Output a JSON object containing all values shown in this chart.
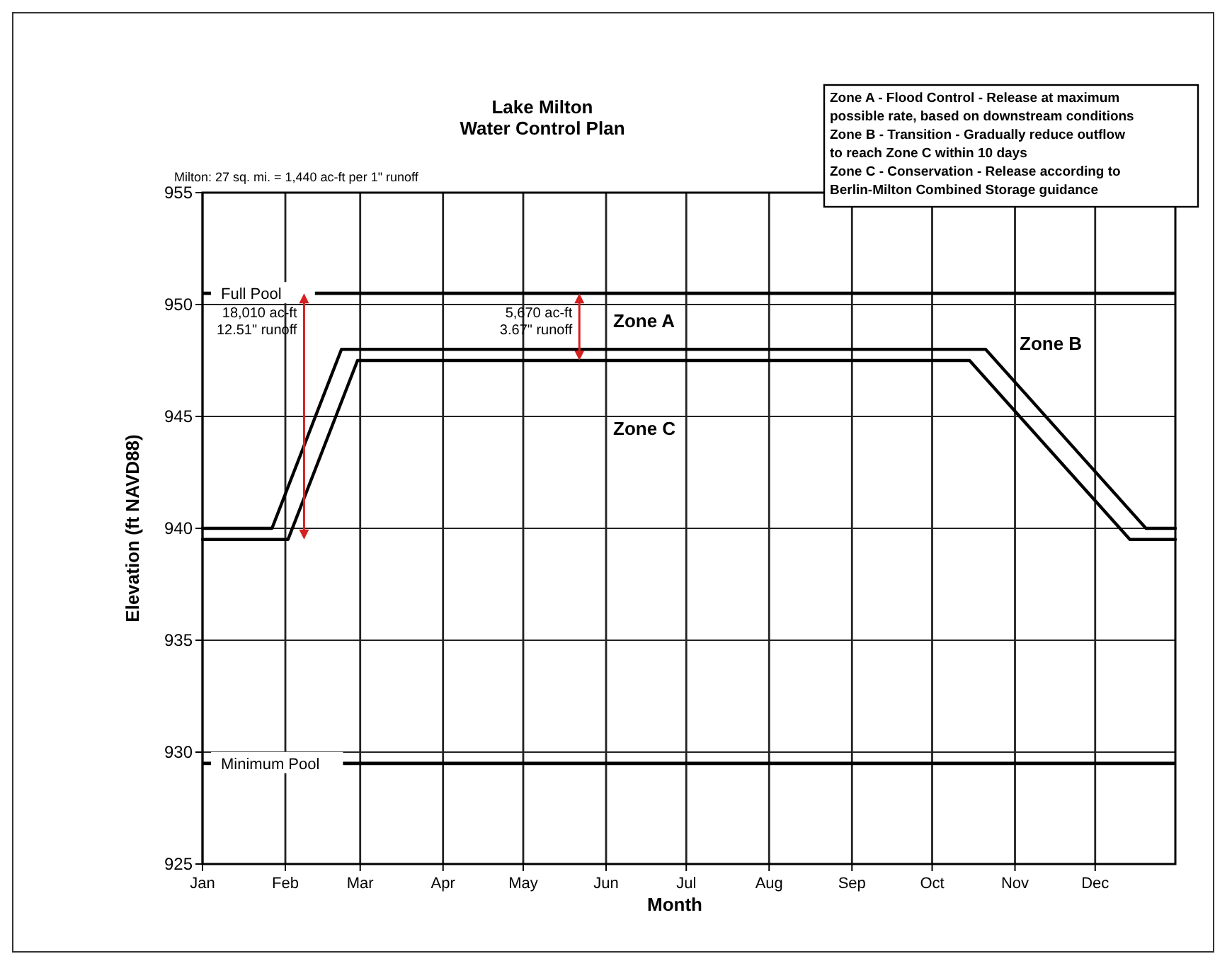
{
  "chart_data": {
    "type": "line",
    "title": "Lake Milton\nWater Control Plan",
    "subtitle": "Milton: 27 sq. mi. = 1,440 ac-ft per 1\" runoff",
    "xlabel": "Month",
    "ylabel": "Elevation (ft NAVD88)",
    "xlim": [
      "--01-01",
      "--12-31"
    ],
    "xticks": [
      {
        "value": "--01-01",
        "label": "Jan"
      },
      {
        "value": "--02-01",
        "label": "Feb"
      },
      {
        "value": "--03-01",
        "label": "Mar"
      },
      {
        "value": "--04-01",
        "label": "Apr"
      },
      {
        "value": "--05-01",
        "label": "May"
      },
      {
        "value": "--06-01",
        "label": "Jun"
      },
      {
        "value": "--07-01",
        "label": "Jul"
      },
      {
        "value": "--08-01",
        "label": "Aug"
      },
      {
        "value": "--09-01",
        "label": "Sep"
      },
      {
        "value": "--10-01",
        "label": "Oct"
      },
      {
        "value": "--11-01",
        "label": "Nov"
      },
      {
        "value": "--12-01",
        "label": "Dec"
      }
    ],
    "ylim": [
      925,
      955
    ],
    "yticks": [
      925,
      930,
      935,
      940,
      945,
      950,
      955
    ],
    "grid": true,
    "marker": "none",
    "line_style": "solid",
    "series": [
      {
        "color": "#000000",
        "x": [
          "--01-01",
          "--01-27",
          "--02-22",
          "--10-21",
          "--12-20",
          "--12-31"
        ],
        "values": [
          940,
          940,
          948,
          948,
          940,
          940
        ]
      },
      {
        "color": "#000000",
        "x": [
          "--01-01",
          "--02-02",
          "--02-28",
          "--10-15",
          "--12-14",
          "--12-31"
        ],
        "values": [
          939.5,
          939.5,
          947.5,
          947.5,
          939.5,
          939.5
        ]
      }
    ],
    "ref_lines": [
      {
        "axis": "y",
        "value": 950.5,
        "label": "Full Pool",
        "color": "#000000"
      },
      {
        "axis": "y",
        "value": 929.5,
        "label": "Minimum Pool",
        "color": "#000000"
      }
    ],
    "annotations": [
      {
        "text": "18,010 ac-ft\n12.51\" runoff",
        "x": "--02-08",
        "y": 950.5
      },
      {
        "text": "5,670 ac-ft\n3.67\" runoff",
        "x": "--05-22",
        "y": 947.5
      },
      "Zone A",
      "Zone B",
      "Zone C",
      "Zone A - Flood Control - Release at maximum\npossible rate, based on downstream conditions\nZone B - Transition - Gradually reduce outflow\nto reach Zone C within 10 days\nZone C - Conservation - Release according to\nBerlin-Milton Combined Storage guidance"
    ]
  }
}
